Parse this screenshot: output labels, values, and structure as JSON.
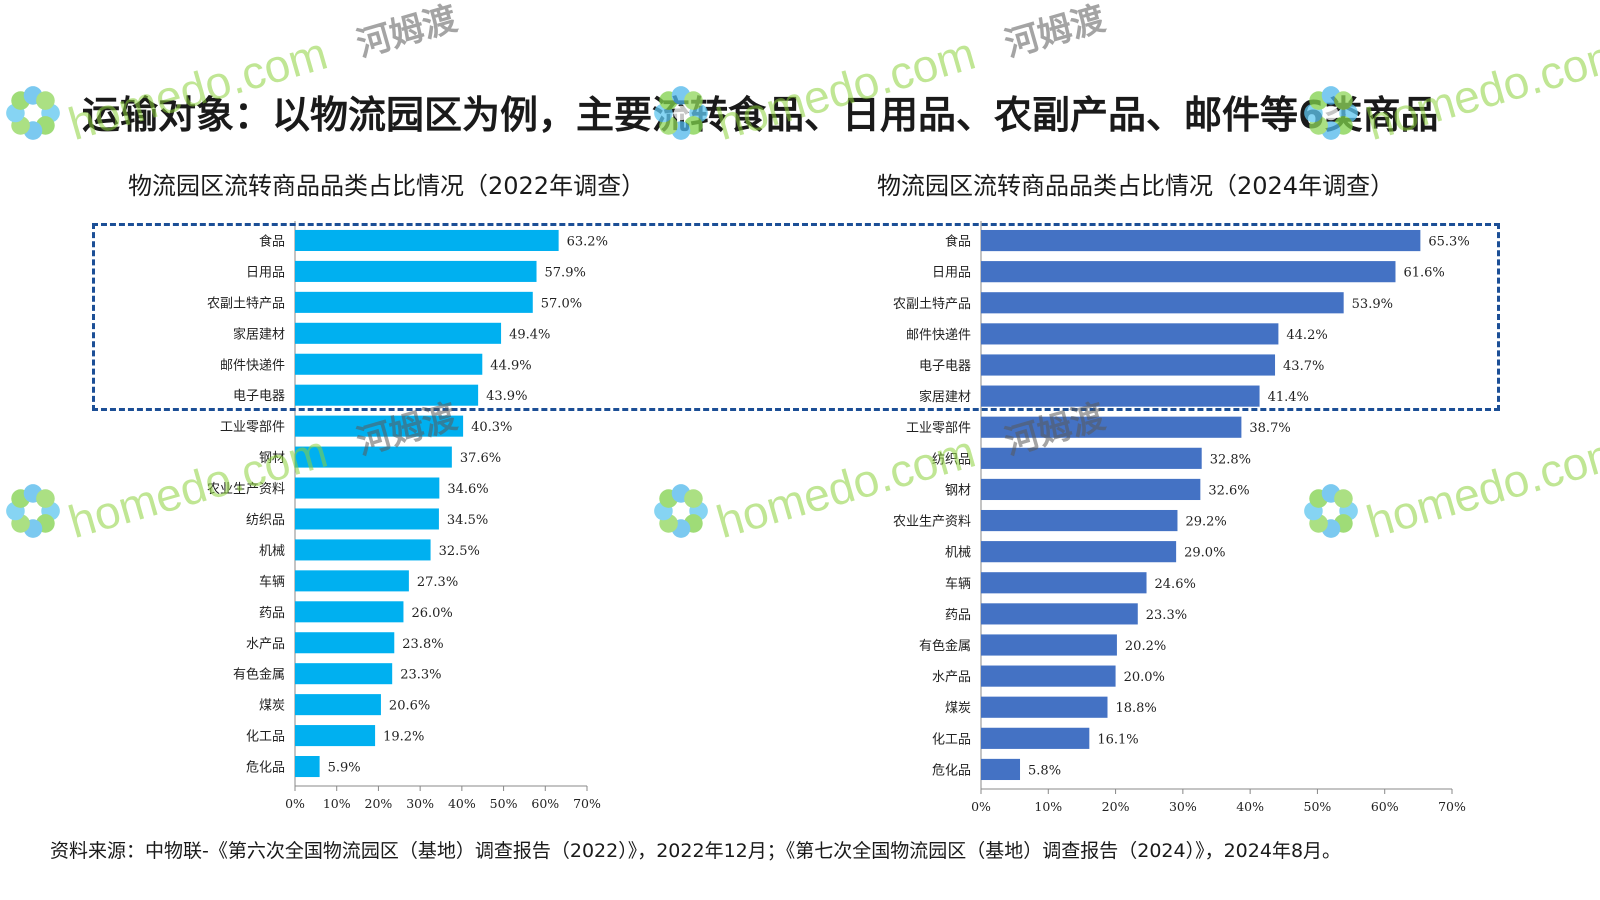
{
  "page": {
    "title": "运输对象：以物流园区为例，主要流转食品、日用品、农副产品、邮件等6类商品",
    "source": "资料来源：中物联-《第六次全国物流园区（基地）调查报告（2022）》，2022年12月；《第七次全国物流园区（基地）调查报告（2024）》，2024年8月。"
  },
  "watermark": {
    "brand": "homedo.com",
    "cn": "河姆渡"
  },
  "colors": {
    "left_bar": "#00b0f0",
    "right_bar": "#4472c4",
    "highlight_border": "#1c4f96"
  },
  "chart_data": [
    {
      "type": "bar",
      "orientation": "horizontal",
      "title": "物流园区流转商品品类占比情况（2022年调查）",
      "categories": [
        "食品",
        "日用品",
        "农副土特产品",
        "家居建材",
        "邮件快递件",
        "电子电器",
        "工业零部件",
        "钢材",
        "农业生产资料",
        "纺织品",
        "机械",
        "车辆",
        "药品",
        "水产品",
        "有色金属",
        "煤炭",
        "化工品",
        "危化品"
      ],
      "values": [
        63.2,
        57.9,
        57.0,
        49.4,
        44.9,
        43.9,
        40.3,
        37.6,
        34.6,
        34.5,
        32.5,
        27.3,
        26.0,
        23.8,
        23.3,
        20.6,
        19.2,
        5.9
      ],
      "value_labels": [
        "63.2%",
        "57.9%",
        "57.0%",
        "49.4%",
        "44.9%",
        "43.9%",
        "40.3%",
        "37.6%",
        "34.6%",
        "34.5%",
        "32.5%",
        "27.3%",
        "26.0%",
        "23.8%",
        "23.3%",
        "20.6%",
        "19.2%",
        "5.9%"
      ],
      "xlim": [
        0,
        70
      ],
      "ticks": [
        "0%",
        "10%",
        "20%",
        "30%",
        "40%",
        "50%",
        "60%",
        "70%"
      ],
      "grid": false
    },
    {
      "type": "bar",
      "orientation": "horizontal",
      "title": "物流园区流转商品品类占比情况（2024年调查）",
      "categories": [
        "食品",
        "日用品",
        "农副土特产品",
        "邮件快递件",
        "电子电器",
        "家居建材",
        "工业零部件",
        "纺织品",
        "钢材",
        "农业生产资料",
        "机械",
        "车辆",
        "药品",
        "有色金属",
        "水产品",
        "煤炭",
        "化工品",
        "危化品"
      ],
      "values": [
        65.3,
        61.6,
        53.9,
        44.2,
        43.7,
        41.4,
        38.7,
        32.8,
        32.6,
        29.2,
        29.0,
        24.6,
        23.3,
        20.2,
        20.0,
        18.8,
        16.1,
        5.8
      ],
      "value_labels": [
        "65.3%",
        "61.6%",
        "53.9%",
        "44.2%",
        "43.7%",
        "41.4%",
        "38.7%",
        "32.8%",
        "32.6%",
        "29.2%",
        "29.0%",
        "24.6%",
        "23.3%",
        "20.2%",
        "20.0%",
        "18.8%",
        "16.1%",
        "5.8%"
      ],
      "xlim": [
        0,
        70
      ],
      "ticks": [
        "0%",
        "10%",
        "20%",
        "30%",
        "40%",
        "50%",
        "60%",
        "70%"
      ],
      "grid": false
    }
  ]
}
